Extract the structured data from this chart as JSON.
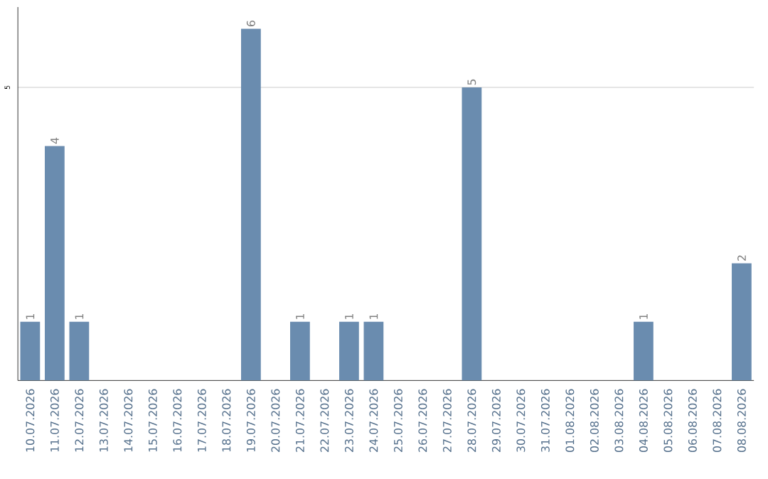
{
  "chart_data": {
    "type": "bar",
    "categories": [
      "10.07.2026",
      "11.07.2026",
      "12.07.2026",
      "13.07.2026",
      "14.07.2026",
      "15.07.2026",
      "16.07.2026",
      "17.07.2026",
      "18.07.2026",
      "19.07.2026",
      "20.07.2026",
      "21.07.2026",
      "22.07.2026",
      "23.07.2026",
      "24.07.2026",
      "25.07.2026",
      "26.07.2026",
      "27.07.2026",
      "28.07.2026",
      "29.07.2026",
      "30.07.2026",
      "31.07.2026",
      "01.08.2026",
      "02.08.2026",
      "03.08.2026",
      "04.08.2026",
      "05.08.2026",
      "06.08.2026",
      "07.08.2026",
      "08.08.2026"
    ],
    "values": [
      1,
      4,
      1,
      0,
      0,
      0,
      0,
      0,
      0,
      6,
      0,
      1,
      0,
      1,
      1,
      0,
      0,
      0,
      5,
      0,
      0,
      0,
      0,
      0,
      0,
      1,
      0,
      0,
      0,
      2
    ],
    "value_labels": [
      "1",
      "4",
      "1",
      null,
      null,
      null,
      null,
      null,
      null,
      "6",
      null,
      "1",
      null,
      "1",
      "1",
      null,
      null,
      null,
      "5",
      null,
      null,
      null,
      null,
      null,
      null,
      "1",
      null,
      null,
      null,
      "2"
    ],
    "color": "#6a8caf",
    "ylim": [
      0,
      6.37
    ],
    "yticks": [
      5
    ],
    "grid": "y"
  }
}
